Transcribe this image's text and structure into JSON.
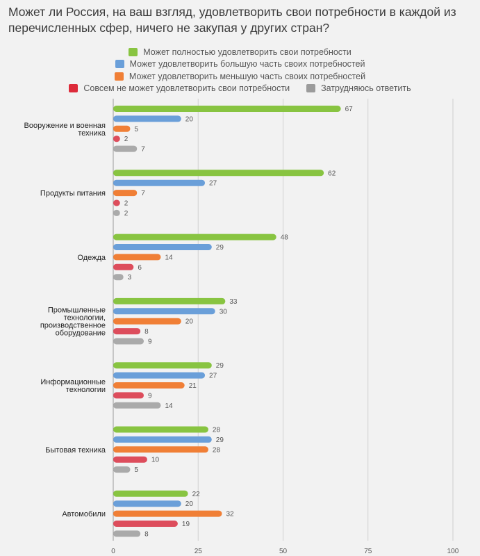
{
  "title": "Может ли Россия, на ваш взгляд, удовлетворить свои потребности в каждой из перечисленных сфер, ничего не закупая у других стран?",
  "chart_data": {
    "type": "bar",
    "orientation": "horizontal",
    "categories": [
      [
        "Вооружение и военная",
        "техника"
      ],
      [
        "Продукты питания"
      ],
      [
        "Одежда"
      ],
      [
        "Промышленные",
        "технологии,",
        "производственное",
        "оборудование"
      ],
      [
        "Информационные",
        "технологии"
      ],
      [
        "Бытовая техника"
      ],
      [
        "Автомобили"
      ]
    ],
    "series": [
      {
        "name": "Может полностью удовлетворить свои потребности",
        "color": "#88c441",
        "values": [
          67,
          62,
          48,
          33,
          29,
          28,
          22
        ]
      },
      {
        "name": "Может удовлетворить большую часть своих потребностей",
        "color": "#6a9fd9",
        "values": [
          20,
          27,
          29,
          30,
          27,
          29,
          20
        ]
      },
      {
        "name": "Может удовлетворить меньшую часть своих потребностей",
        "color": "#f07f36",
        "values": [
          5,
          7,
          14,
          20,
          21,
          28,
          32
        ]
      },
      {
        "name": "Совсем не может удовлетворить свои потребности",
        "color": "#dd4d5c",
        "values": [
          2,
          2,
          6,
          8,
          9,
          10,
          19
        ]
      },
      {
        "name": "Затрудняюсь ответить",
        "color": "#aaaaaa",
        "values": [
          7,
          2,
          3,
          9,
          14,
          5,
          8
        ]
      }
    ],
    "xlim": [
      0,
      100
    ],
    "xticks": [
      "0",
      "25",
      "50",
      "75",
      "100"
    ],
    "grid": true,
    "legend_position": "top"
  }
}
